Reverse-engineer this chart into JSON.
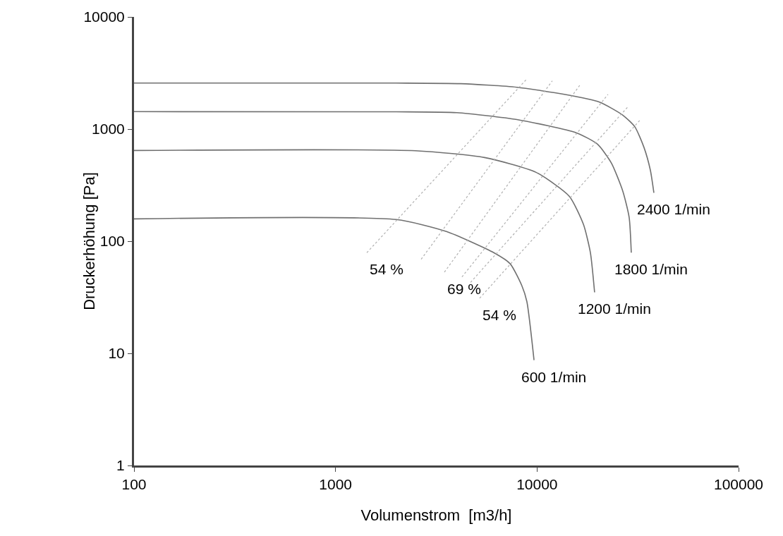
{
  "chart_data": {
    "type": "line",
    "xlabel": "Volumenstrom  [m3/h]",
    "ylabel": "Druckerhöhung [Pa]",
    "log": "xy",
    "grid": false,
    "marker": "none",
    "xlim": [
      100,
      100000
    ],
    "xticks": [
      100,
      1000,
      10000,
      100000
    ],
    "ylim": [
      1,
      10000
    ],
    "yticks": [
      1,
      10,
      100,
      1000,
      10000
    ],
    "series": [
      {
        "color": "#707070",
        "line_style": "solid",
        "x": [
          100,
          2000,
          4170,
          7940,
          13650,
          20400,
          26650,
          30550,
          33900,
          36500,
          38000
        ],
        "values": [
          2575,
          2570,
          2540,
          2360,
          2040,
          1740,
          1330,
          1050,
          690,
          430,
          270
        ]
      },
      {
        "color": "#707070",
        "line_style": "solid",
        "x": [
          100,
          2000,
          4000,
          7940,
          15700,
          19950,
          23400,
          26650,
          28650,
          29350
        ],
        "values": [
          1430,
          1425,
          1400,
          1215,
          925,
          733,
          497,
          279,
          163,
          79
        ]
      },
      {
        "color": "#707070",
        "line_style": "solid",
        "x": [
          100,
          2500,
          5490,
          9890,
          14450,
          17000,
          18400,
          19300
        ],
        "values": [
          644,
          640,
          557,
          411,
          252,
          141,
          79,
          35
        ]
      },
      {
        "color": "#707070",
        "line_style": "solid",
        "x": [
          100,
          2000,
          3550,
          6100,
          7350,
          8410,
          8900,
          9660
        ],
        "values": [
          158,
          156,
          122,
          79,
          63,
          40,
          29,
          8.7
        ]
      },
      {
        "color": "#b0b0b0",
        "line_style": "dotted",
        "x": [
          1430,
          8900
        ],
        "values": [
          79,
          2800
        ]
      },
      {
        "color": "#b0b0b0",
        "line_style": "dotted",
        "x": [
          2660,
          11900
        ],
        "values": [
          69,
          2690
        ]
      },
      {
        "color": "#b0b0b0",
        "line_style": "dotted",
        "x": [
          3470,
          16400
        ],
        "values": [
          53,
          2500
        ]
      },
      {
        "color": "#b0b0b0",
        "line_style": "dotted",
        "x": [
          4240,
          22500
        ],
        "values": [
          48,
          2040
        ]
      },
      {
        "color": "#b0b0b0",
        "line_style": "dotted",
        "x": [
          4680,
          28200
        ],
        "values": [
          43,
          1575
        ]
      },
      {
        "color": "#b0b0b0",
        "line_style": "dotted",
        "x": [
          5190,
          32600
        ],
        "values": [
          31,
          1215
        ]
      }
    ],
    "annotations": [
      {
        "text": "2400 1/min",
        "x": 38000,
        "y": 270
      },
      {
        "text": "1800 1/min",
        "x": 29350,
        "y": 79
      },
      {
        "text": "1200 1/min",
        "x": 19300,
        "y": 35
      },
      {
        "text": "600 1/min",
        "x": 9660,
        "y": 8.7
      },
      {
        "text": "54 %",
        "x": 1430,
        "y": 79
      },
      {
        "text": "69 %",
        "x": 3470,
        "y": 53
      },
      {
        "text": "54 %",
        "x": 5190,
        "y": 31
      }
    ]
  }
}
